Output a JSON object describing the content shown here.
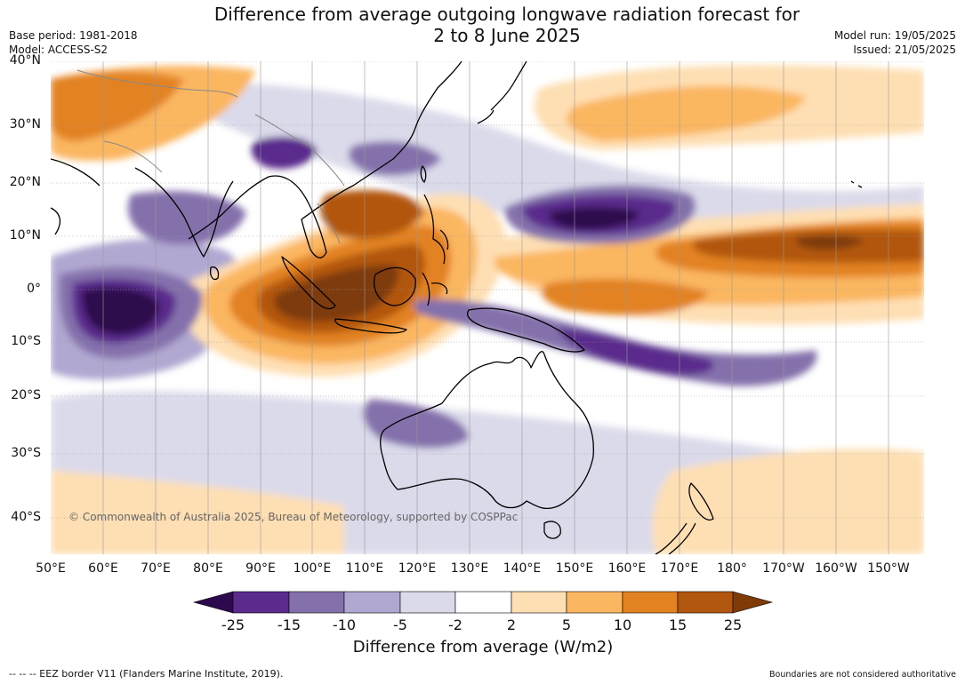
{
  "header": {
    "title_line1": "Difference from average outgoing longwave radiation forecast for",
    "title_line2": "2 to 8 June 2025",
    "base_period": "Base period: 1981-2018",
    "model": "Model: ACCESS-S2",
    "model_run": "Model run: 19/05/2025",
    "issued": "Issued: 21/05/2025"
  },
  "map": {
    "latitude_labels": [
      "40°N",
      "30°N",
      "20°N",
      "10°N",
      "0°",
      "10°S",
      "20°S",
      "30°S",
      "40°S"
    ],
    "longitude_labels": [
      "50°E",
      "60°E",
      "70°E",
      "80°E",
      "90°E",
      "100°E",
      "110°E",
      "120°E",
      "130°E",
      "140°E",
      "150°E",
      "160°E",
      "170°E",
      "180°",
      "170°W",
      "160°W",
      "150°W"
    ],
    "copyright": "© Commonwealth of Australia 2025, Bureau of Meteorology, supported by COSPPac",
    "colors": {
      "neg_extreme": "#2d0a4e",
      "neg_25_15": "#5a2a8c",
      "neg_15_10": "#8471ac",
      "neg_10_5": "#b1a8d1",
      "neg_5_2": "#dadaeb",
      "neutral": "#ffffff",
      "pos_2_5": "#fedfb3",
      "pos_5_10": "#fbb661",
      "pos_10_15": "#e28220",
      "pos_15_25": "#b25710",
      "pos_extreme": "#7e3b08",
      "land_outline": "#000000",
      "border": "#888888"
    }
  },
  "colorbar": {
    "tick_labels": [
      "-25",
      "-15",
      "-10",
      "-5",
      "-2",
      "2",
      "5",
      "10",
      "15",
      "25"
    ],
    "title": "Difference from average (W/m2)"
  },
  "footer": {
    "eez_note": "--  --  -- EEZ border V11 (Flanders Marine Institute, 2019).",
    "disclaimer": "Boundaries are not considered authoritative"
  }
}
